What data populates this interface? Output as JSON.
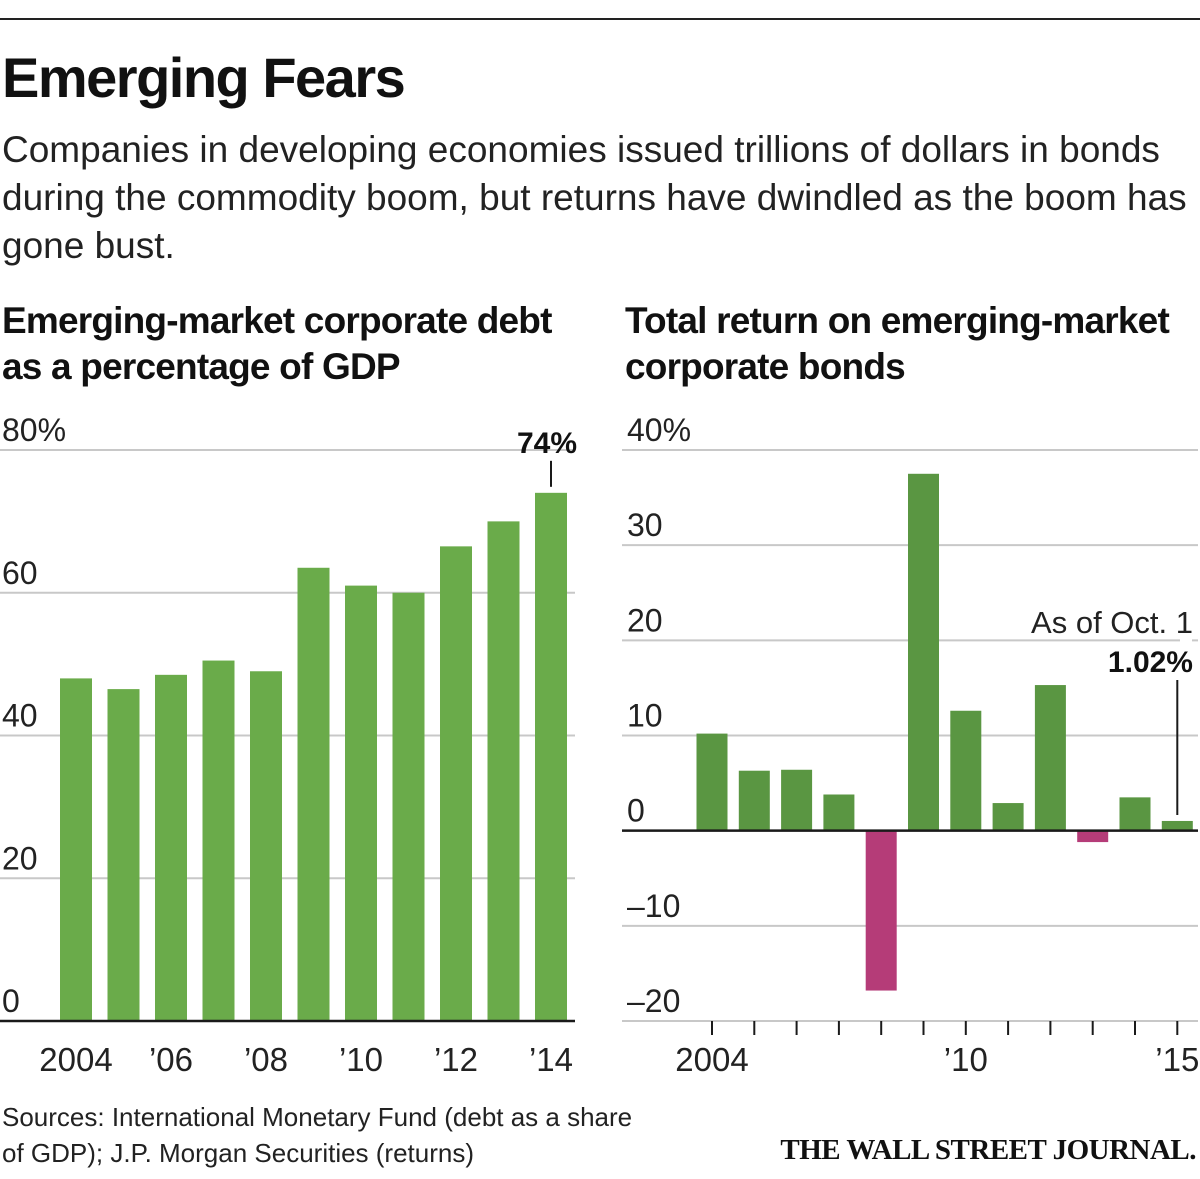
{
  "title": "Emerging Fears",
  "dek": "Companies in developing economies issued trillions of dollars in bonds during the commodity boom, but returns have dwindled as the boom has gone bust.",
  "chart_data": [
    {
      "type": "bar",
      "title": "Emerging-market corporate debt as a percentage of GDP",
      "categories": [
        "2004",
        "2005",
        "2006",
        "2007",
        "2008",
        "2009",
        "2010",
        "2011",
        "2012",
        "2013",
        "2014"
      ],
      "values": [
        48,
        46.5,
        48.5,
        50.5,
        49,
        63.5,
        61,
        60,
        66.5,
        70,
        74
      ],
      "ylim": [
        0,
        80
      ],
      "yticks": [
        0,
        20,
        40,
        60,
        80
      ],
      "ytick_labels": [
        "0",
        "20",
        "40",
        "60",
        "80%"
      ],
      "xtick_labels": [
        {
          "category": "2004",
          "label": "2004"
        },
        {
          "category": "2006",
          "label": "’06"
        },
        {
          "category": "2008",
          "label": "’08"
        },
        {
          "category": "2010",
          "label": "’10"
        },
        {
          "category": "2012",
          "label": "’12"
        },
        {
          "category": "2014",
          "label": "’14"
        }
      ],
      "annotation": {
        "category": "2014",
        "text": "74%"
      },
      "bar_color": "#6aab4a",
      "xlabel": "",
      "ylabel": ""
    },
    {
      "type": "bar",
      "title": "Total return on emerging-market corporate bonds",
      "categories": [
        "2004",
        "2005",
        "2006",
        "2007",
        "2008",
        "2009",
        "2010",
        "2011",
        "2012",
        "2013",
        "2014",
        "2015"
      ],
      "values": [
        10.2,
        6.3,
        6.4,
        3.8,
        -16.8,
        37.5,
        12.6,
        2.9,
        15.3,
        -1.2,
        3.5,
        1.02
      ],
      "ylim": [
        -20,
        40
      ],
      "yticks": [
        -20,
        -10,
        0,
        10,
        20,
        30,
        40
      ],
      "ytick_labels": [
        "–20",
        "–10",
        "0",
        "10",
        "20",
        "30",
        "40%"
      ],
      "xtick_labels": [
        {
          "category": "2004",
          "label": "2004"
        },
        {
          "category": "2010",
          "label": "’10"
        },
        {
          "category": "2015",
          "label": "’15"
        }
      ],
      "annotation": {
        "category": "2015",
        "note": "As of Oct. 1",
        "text": "1.02%"
      },
      "positive_color": "#5a9642",
      "negative_color": "#b53c78",
      "xlabel": "",
      "ylabel": ""
    }
  ],
  "footer": {
    "source": "Sources: International Monetary Fund (debt as a share of GDP); J.P. Morgan Securities (returns)",
    "credit": "THE WALL STREET JOURNAL."
  }
}
